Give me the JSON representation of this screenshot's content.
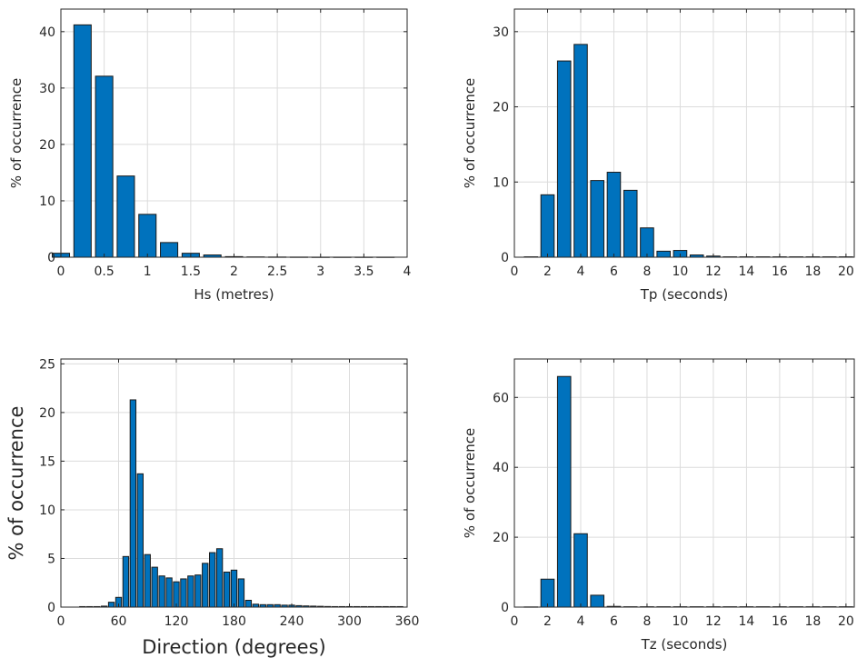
{
  "chart_data": [
    {
      "id": "hs",
      "type": "bar",
      "xlabel": "Hs (metres)",
      "ylabel": "% of occurrence",
      "label_size": "normal",
      "xlim": [
        0,
        4
      ],
      "ylim": [
        0,
        44
      ],
      "xticks": [
        0,
        0.5,
        1,
        1.5,
        2,
        2.5,
        3,
        3.5,
        4
      ],
      "xtick_labels": [
        "0",
        "0.5",
        "1",
        "1.5",
        "2",
        "2.5",
        "3",
        "3.5",
        "4"
      ],
      "yticks": [
        0,
        10,
        20,
        30,
        40
      ],
      "ytick_labels": [
        "0",
        "10",
        "20",
        "30",
        "40"
      ],
      "grid": true,
      "bin_width": 0.25,
      "bar_color": "#0072bd",
      "x": [
        0,
        0.25,
        0.5,
        0.75,
        1,
        1.25,
        1.5,
        1.75,
        2,
        2.25,
        2.5,
        2.75,
        3,
        3.25,
        3.5,
        3.75
      ],
      "values": [
        0.7,
        41.2,
        32.1,
        14.4,
        7.6,
        2.6,
        0.7,
        0.4,
        0.1,
        0.05,
        0.03,
        0.02,
        0.01,
        0.01,
        0.01,
        0.01
      ]
    },
    {
      "id": "tp",
      "type": "bar",
      "xlabel": "Tp (seconds)",
      "ylabel": "% of occurrence",
      "label_size": "normal",
      "xlim": [
        0,
        20.5
      ],
      "ylim": [
        0,
        33
      ],
      "xticks": [
        0,
        2,
        4,
        6,
        8,
        10,
        12,
        14,
        16,
        18,
        20
      ],
      "xtick_labels": [
        "0",
        "2",
        "4",
        "6",
        "8",
        "10",
        "12",
        "14",
        "16",
        "18",
        "20"
      ],
      "yticks": [
        0,
        10,
        20,
        30
      ],
      "ytick_labels": [
        "0",
        "10",
        "20",
        "30"
      ],
      "grid": true,
      "bin_width": 1,
      "bar_color": "#0072bd",
      "x": [
        1,
        2,
        3,
        4,
        5,
        6,
        7,
        8,
        9,
        10,
        11,
        12,
        13,
        14,
        15,
        16,
        17,
        18,
        19,
        20
      ],
      "values": [
        0.05,
        8.3,
        26.1,
        28.3,
        10.2,
        11.3,
        8.9,
        3.9,
        0.8,
        0.9,
        0.3,
        0.15,
        0.05,
        0.05,
        0.05,
        0.05,
        0.05,
        0.05,
        0.05,
        0.05
      ]
    },
    {
      "id": "dir",
      "type": "bar",
      "xlabel": "Direction (degrees)",
      "ylabel": "% of occurrence",
      "label_size": "large",
      "xlim": [
        0,
        360
      ],
      "ylim": [
        0,
        25.5
      ],
      "xticks": [
        0,
        60,
        120,
        180,
        240,
        300,
        360
      ],
      "xtick_labels": [
        "0",
        "60",
        "120",
        "180",
        "240",
        "300",
        "360"
      ],
      "yticks": [
        0,
        5,
        10,
        15,
        20,
        25
      ],
      "ytick_labels": [
        "0",
        "5",
        "10",
        "15",
        "20",
        "25"
      ],
      "grid": true,
      "bin_width": 7.5,
      "bar_color": "#0072bd",
      "x": [
        22.5,
        30,
        37.5,
        45,
        52.5,
        60,
        67.5,
        75,
        82.5,
        90,
        97.5,
        105,
        112.5,
        120,
        127.5,
        135,
        142.5,
        150,
        157.5,
        165,
        172.5,
        180,
        187.5,
        195,
        202.5,
        210,
        217.5,
        225,
        232.5,
        240,
        247.5,
        255,
        262.5,
        270,
        277.5,
        285,
        292.5,
        300,
        307.5,
        315,
        322.5,
        330,
        337.5,
        345,
        352.5
      ],
      "values": [
        0.05,
        0.05,
        0.05,
        0.1,
        0.5,
        1.0,
        5.2,
        21.3,
        13.7,
        5.4,
        4.1,
        3.2,
        3.0,
        2.6,
        2.9,
        3.2,
        3.3,
        4.5,
        5.6,
        6.0,
        3.6,
        3.8,
        2.9,
        0.7,
        0.3,
        0.25,
        0.25,
        0.25,
        0.2,
        0.2,
        0.15,
        0.12,
        0.1,
        0.08,
        0.06,
        0.05,
        0.05,
        0.05,
        0.05,
        0.05,
        0.05,
        0.05,
        0.05,
        0.05,
        0.05
      ]
    },
    {
      "id": "tz",
      "type": "bar",
      "xlabel": "Tz (seconds)",
      "ylabel": "% of occurrence",
      "label_size": "normal",
      "xlim": [
        0,
        20.5
      ],
      "ylim": [
        0,
        71
      ],
      "xticks": [
        0,
        2,
        4,
        6,
        8,
        10,
        12,
        14,
        16,
        18,
        20
      ],
      "xtick_labels": [
        "0",
        "2",
        "4",
        "6",
        "8",
        "10",
        "12",
        "14",
        "16",
        "18",
        "20"
      ],
      "yticks": [
        0,
        20,
        40,
        60
      ],
      "ytick_labels": [
        "0",
        "20",
        "40",
        "60"
      ],
      "grid": true,
      "bin_width": 1,
      "bar_color": "#0072bd",
      "x": [
        1,
        2,
        3,
        4,
        5,
        6,
        7,
        8,
        9,
        10,
        11,
        12,
        13,
        14,
        15,
        16,
        17,
        18,
        19,
        20
      ],
      "values": [
        0.05,
        8.0,
        66.0,
        21.0,
        3.4,
        0.2,
        0.1,
        0.1,
        0.1,
        0.1,
        0.1,
        0.1,
        0.1,
        0.1,
        0.1,
        0.1,
        0.1,
        0.1,
        0.1,
        0.1
      ]
    }
  ]
}
